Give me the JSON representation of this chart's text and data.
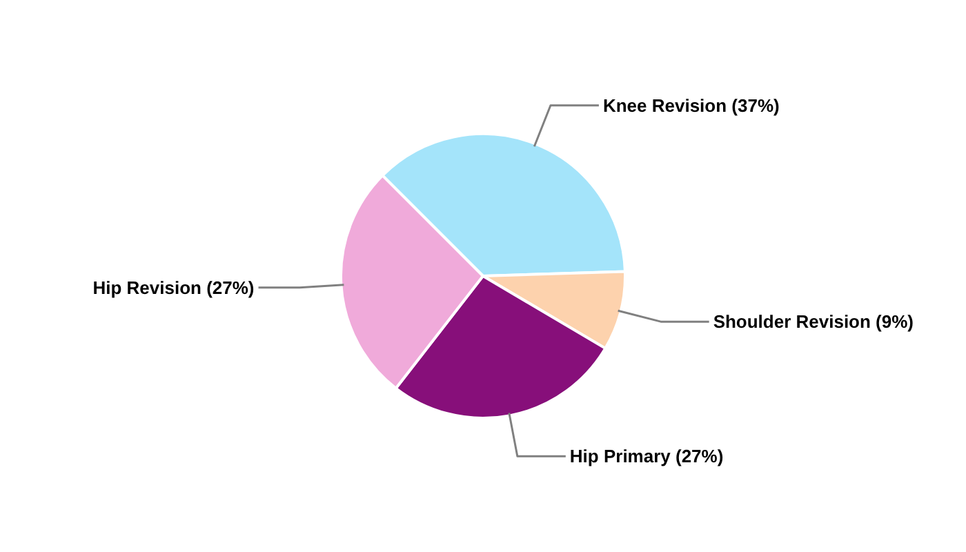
{
  "chart_data": {
    "type": "pie",
    "categories": [
      "Knee Revision (37%)",
      "Shoulder Revision (9%)",
      "Hip Primary (27%)",
      "Hip Revision (27%)"
    ],
    "values": [
      37,
      9,
      27,
      27
    ],
    "colors": [
      "#a4e4fa",
      "#fdd2ad",
      "#870f7a",
      "#f0aada"
    ],
    "legend": false
  }
}
